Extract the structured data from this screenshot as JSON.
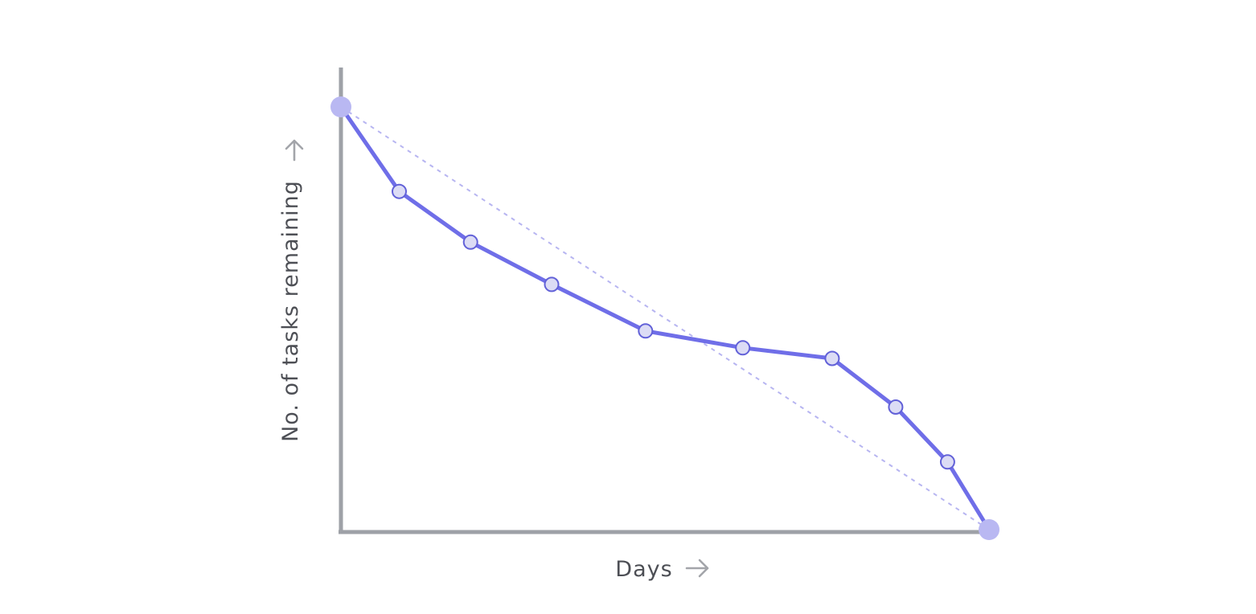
{
  "chart_data": {
    "type": "line",
    "xlabel": "Days",
    "ylabel": "No. of tasks remaining",
    "title": "",
    "grid": false,
    "xlim": [
      0,
      10
    ],
    "ylim": [
      0,
      10
    ],
    "series": [
      {
        "kind": "ideal",
        "style": "dotted",
        "x": [
          0,
          10
        ],
        "y": [
          10,
          0
        ]
      },
      {
        "kind": "actual",
        "style": "solid",
        "x": [
          0,
          0.9,
          2.0,
          3.25,
          4.7,
          6.2,
          7.58,
          8.56,
          9.36,
          10
        ],
        "y": [
          10,
          8.0,
          6.8,
          5.8,
          4.7,
          4.3,
          4.05,
          2.9,
          1.6,
          0
        ]
      }
    ],
    "colors": {
      "axis": "#9ea1a7",
      "actual": "#6f6ee8",
      "ideal": "#b7b5f1",
      "endpoint": "#b9b8f2",
      "point_fill": "#dcdcf5",
      "arrow": "#a3a5aa",
      "label": "#4d4f55"
    },
    "axis_arrows": {
      "x": "arrow-right-icon",
      "y": "arrow-up-icon"
    }
  }
}
